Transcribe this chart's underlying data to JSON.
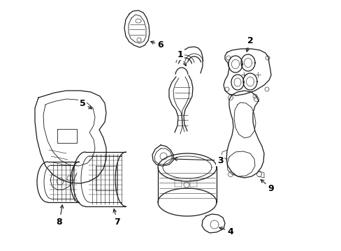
{
  "background_color": "#ffffff",
  "line_color": "#1a1a1a",
  "text_color": "#000000",
  "fig_width": 4.89,
  "fig_height": 3.6,
  "dpi": 100
}
